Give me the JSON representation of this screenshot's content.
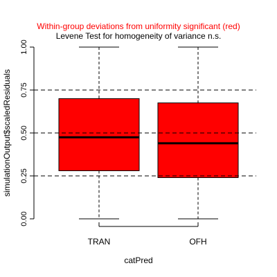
{
  "chart_data": {
    "type": "boxplot",
    "title_lines": [
      {
        "text": "Within-group deviations from uniformity significant (red)",
        "color": "#ff0000"
      },
      {
        "text": "Levene Test for homogeneity of variance n.s.",
        "color": "#000000"
      }
    ],
    "xlabel": "catPred",
    "ylabel": "simulationOutput$scaledResiduals",
    "ylim": [
      0,
      1
    ],
    "yticks": [
      0.0,
      0.25,
      0.5,
      0.75,
      1.0
    ],
    "ytick_labels": [
      "0.00",
      "0.25",
      "0.50",
      "0.75",
      "1.00"
    ],
    "reference_lines": [
      0.25,
      0.5,
      0.75
    ],
    "categories": [
      "TRAN",
      "OFH"
    ],
    "boxes": [
      {
        "category": "TRAN",
        "min": 0.0,
        "q1": 0.28,
        "median": 0.475,
        "q3": 0.7,
        "max": 1.0,
        "fill": "#ff0000"
      },
      {
        "category": "OFH",
        "min": 0.0,
        "q1": 0.24,
        "median": 0.44,
        "q3": 0.675,
        "max": 1.0,
        "fill": "#ff0000"
      }
    ]
  }
}
